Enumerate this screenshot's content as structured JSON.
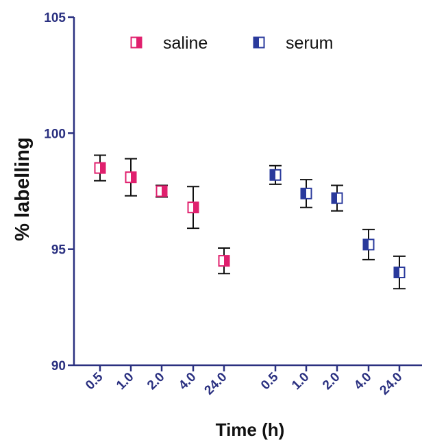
{
  "chart_data": {
    "type": "scatter",
    "title": "",
    "xlabel": "Time (h)",
    "ylabel": "% labelling",
    "ylim": [
      90,
      105
    ],
    "yticks": [
      "90",
      "95",
      "100",
      "105"
    ],
    "grid": false,
    "legend_position": "top",
    "categories": [
      "0.5",
      "1.0",
      "2.0",
      "4.0",
      "24.0",
      "0.5",
      "1.0",
      "2.0",
      "4.0",
      "24.0"
    ],
    "series": [
      {
        "name": "saline",
        "color": "#e0206e",
        "marker": "half-filled-square-right",
        "categories": [
          "0.5",
          "1.0",
          "2.0",
          "4.0",
          "24.0"
        ],
        "values": [
          98.5,
          98.1,
          97.5,
          96.8,
          94.5
        ],
        "error": [
          0.55,
          0.8,
          0.25,
          0.9,
          0.55
        ]
      },
      {
        "name": "serum",
        "color": "#2a3a9c",
        "marker": "half-filled-square-left",
        "categories": [
          "0.5",
          "1.0",
          "2.0",
          "4.0",
          "24.0"
        ],
        "values": [
          98.2,
          97.4,
          97.2,
          95.2,
          94.0
        ],
        "error": [
          0.4,
          0.6,
          0.55,
          0.65,
          0.7
        ]
      }
    ]
  },
  "colors": {
    "axis": "#2a3080",
    "tick_label": "#2a3080",
    "error_bar": "#111111"
  }
}
